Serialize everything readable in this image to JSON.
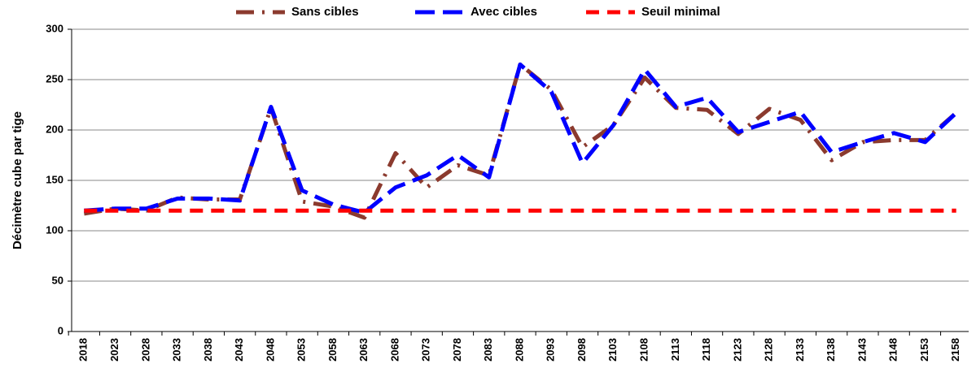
{
  "chart_data": {
    "type": "line",
    "ylabel": "Décimètre cube par tige",
    "categories": [
      "2018",
      "2023",
      "2028",
      "2033",
      "2038",
      "2043",
      "2048",
      "2053",
      "2058",
      "2063",
      "2068",
      "2073",
      "2078",
      "2083",
      "2088",
      "2093",
      "2098",
      "2103",
      "2108",
      "2113",
      "2118",
      "2123",
      "2128",
      "2133",
      "2138",
      "2143",
      "2148",
      "2153",
      "2158"
    ],
    "series": [
      {
        "name": "Sans cibles",
        "color": "#8b3a2e",
        "dash": "long-dash-dot",
        "values": [
          117,
          122,
          120,
          133,
          131,
          131,
          222,
          129,
          124,
          113,
          177,
          143,
          165,
          155,
          265,
          240,
          183,
          205,
          252,
          222,
          220,
          196,
          221,
          210,
          170,
          188,
          190,
          190,
          217
        ]
      },
      {
        "name": "Avec cibles",
        "color": "#0000ff",
        "dash": "long-dash",
        "values": [
          120,
          122,
          122,
          132,
          132,
          130,
          223,
          140,
          126,
          118,
          143,
          155,
          175,
          153,
          265,
          238,
          167,
          205,
          260,
          223,
          232,
          198,
          208,
          218,
          178,
          188,
          197,
          188,
          217
        ]
      },
      {
        "name": "Seuil minimal",
        "color": "#ff0000",
        "dash": "dash",
        "values": [
          120,
          120,
          120,
          120,
          120,
          120,
          120,
          120,
          120,
          120,
          120,
          120,
          120,
          120,
          120,
          120,
          120,
          120,
          120,
          120,
          120,
          120,
          120,
          120,
          120,
          120,
          120,
          120,
          120
        ]
      }
    ],
    "ylim": [
      0,
      300
    ],
    "yticks": [
      0,
      50,
      100,
      150,
      200,
      250,
      300
    ],
    "grid": true,
    "legend": "top"
  }
}
